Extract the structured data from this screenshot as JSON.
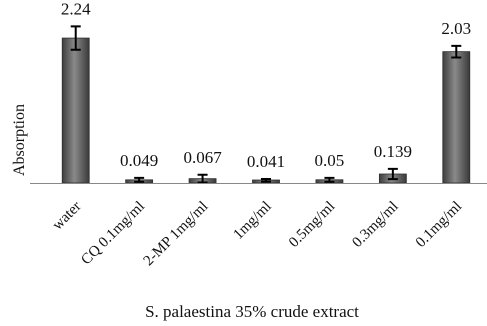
{
  "chart_data": {
    "type": "bar",
    "categories": [
      "water",
      "CQ 0.1mg/ml",
      "2-MP 1mg/ml",
      "1mg/ml",
      "0.5mg/ml",
      "0.3mg/ml",
      "0.1mg/ml"
    ],
    "values": [
      2.24,
      0.049,
      0.067,
      0.041,
      0.05,
      0.139,
      2.03
    ],
    "value_labels": [
      "2.24",
      "0.049",
      "0.067",
      "0.041",
      "0.05",
      "0.139",
      "2.03"
    ],
    "error": [
      0.18,
      0.03,
      0.06,
      0.02,
      0.03,
      0.08,
      0.09
    ],
    "title": "",
    "xlabel": "S. palaestina 35% crude extract",
    "ylabel": "Absorption",
    "ylim": [
      0,
      2.55
    ],
    "grid": false,
    "legend": "none",
    "bar_color": "#5a5a5a",
    "bar_highlight": "#9a9a9a"
  }
}
